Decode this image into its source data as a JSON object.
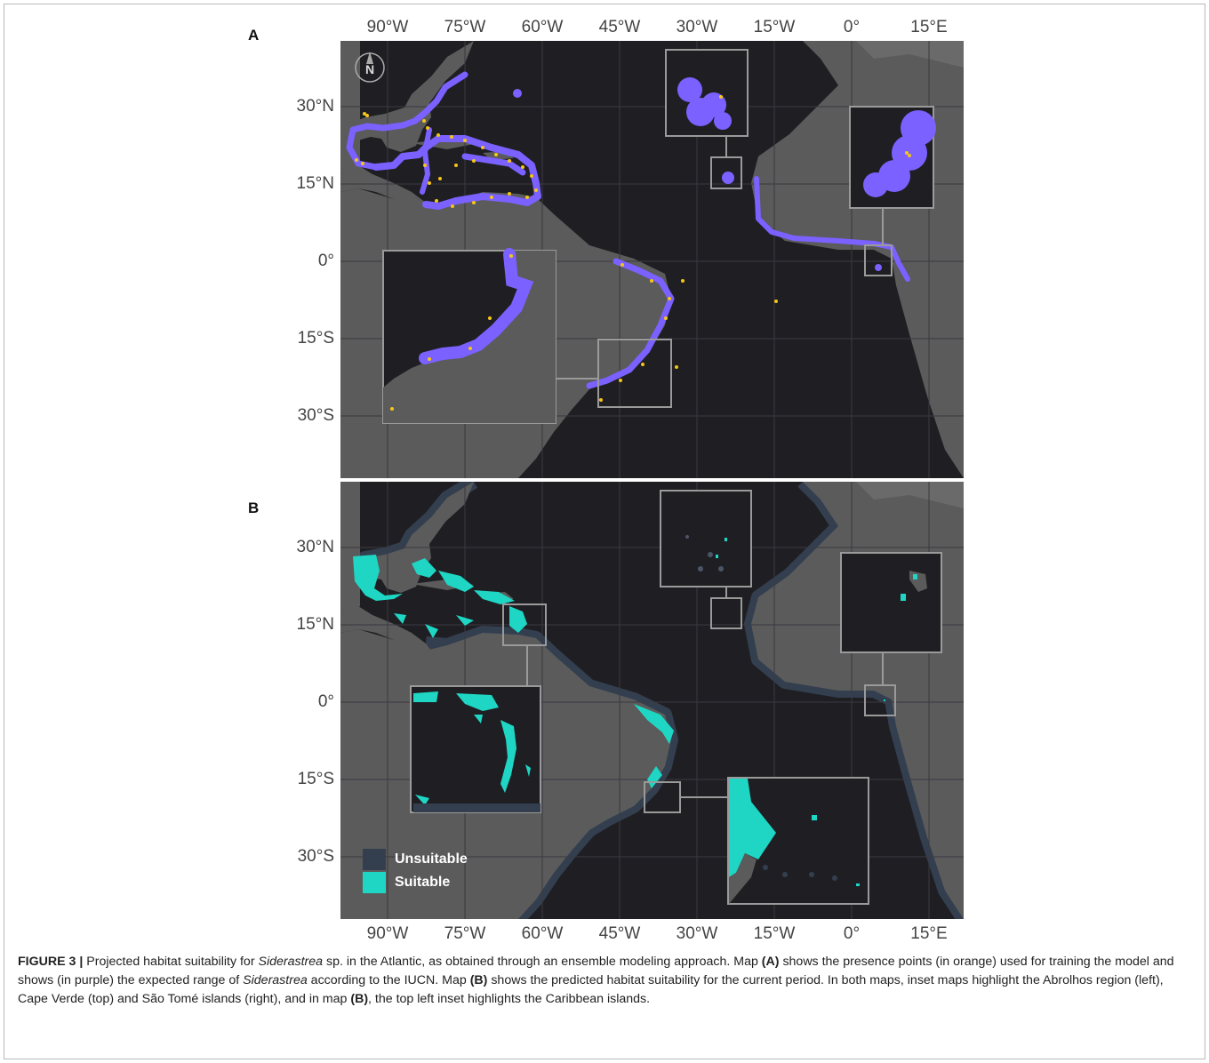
{
  "panels": {
    "a": {
      "label": "A"
    },
    "b": {
      "label": "B"
    }
  },
  "axes": {
    "longitude_ticks": [
      "90°W",
      "75°W",
      "60°W",
      "45°W",
      "30°W",
      "15°W",
      "0°",
      "15°E"
    ],
    "latitude_ticks": [
      "30°N",
      "15°N",
      "0°",
      "15°S",
      "30°S"
    ]
  },
  "north_arrow": {
    "label": "N"
  },
  "legend": {
    "items": [
      {
        "label": "Unsuitable",
        "color": "#333f4f"
      },
      {
        "label": "Suitable",
        "color": "#1fd6c4"
      }
    ]
  },
  "colors": {
    "ocean": "#1f1f23",
    "land": "#5b5b5b",
    "land_far": "#6a6a6a",
    "iucn_range": "#7b61ff",
    "presence_points": "#f5c518",
    "suitable": "#1fd6c4",
    "unsuitable": "#333f4f",
    "grid": "#3a3a40",
    "inset_border": "#9a9a9a"
  },
  "caption": {
    "figure_label": "FIGURE 3 |",
    "t1": " Projected habitat suitability for ",
    "i1": "Siderastrea",
    "t2": " sp. in the Atlantic, as obtained through an ensemble modeling approach. Map ",
    "b1": "(A)",
    "t3": " shows the presence points (in orange) used for training the model and shows (in purple) the expected range of ",
    "i2": "Siderastrea",
    "t4": " according to the IUCN. Map ",
    "b2": "(B)",
    "t5": " shows the predicted habitat suitability for the current period. In both maps, inset maps highlight the Abrolhos region (left), Cape Verde (top) and São Tomé islands (right), and in map ",
    "b3": "(B)",
    "t6": ", the top left inset highlights the Caribbean islands."
  }
}
